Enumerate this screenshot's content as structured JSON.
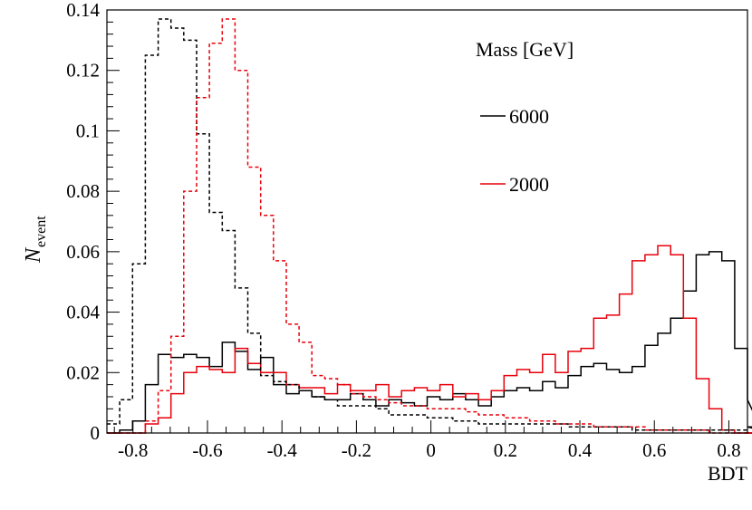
{
  "chart_data": {
    "type": "histogram",
    "xlabel": "BDT",
    "ylabel_main": "N",
    "ylabel_sub": "event",
    "xlim": [
      -0.87,
      0.85
    ],
    "ylim": [
      0,
      0.14
    ],
    "x_ticks": [
      -0.8,
      -0.6,
      -0.4,
      -0.2,
      0,
      0.2,
      0.4,
      0.6,
      0.8
    ],
    "x_tick_labels": [
      "-0.8",
      "-0.6",
      "-0.4",
      "-0.2",
      "0",
      "0.2",
      "0.4",
      "0.6",
      "0.8"
    ],
    "y_ticks": [
      0,
      0.02,
      0.04,
      0.06,
      0.08,
      0.1,
      0.12,
      0.14
    ],
    "y_tick_labels": [
      "0",
      "0.02",
      "0.04",
      "0.06",
      "0.08",
      "0.1",
      "0.12",
      "0.14"
    ],
    "legend": {
      "title": "Mass [GeV]",
      "entries": [
        {
          "label": "6000",
          "color": "#000000"
        },
        {
          "label": "2000",
          "color": "#e8000b"
        }
      ]
    },
    "binning": {
      "start": -0.87,
      "width": 0.0344
    },
    "series": [
      {
        "name": "6000 signal",
        "color": "#000000",
        "dashed": false,
        "values": [
          0.0,
          0.001,
          0.004,
          0.016,
          0.026,
          0.025,
          0.026,
          0.025,
          0.022,
          0.03,
          0.027,
          0.021,
          0.025,
          0.016,
          0.013,
          0.014,
          0.012,
          0.011,
          0.011,
          0.013,
          0.011,
          0.009,
          0.011,
          0.01,
          0.009,
          0.012,
          0.011,
          0.013,
          0.011,
          0.009,
          0.012,
          0.014,
          0.015,
          0.014,
          0.017,
          0.015,
          0.019,
          0.022,
          0.023,
          0.021,
          0.02,
          0.022,
          0.029,
          0.033,
          0.038,
          0.047,
          0.059,
          0.06,
          0.057,
          0.028,
          0.011,
          0.002,
          0.0
        ]
      },
      {
        "name": "2000 signal",
        "color": "#e8000b",
        "dashed": false,
        "values": [
          0.0,
          0.0,
          0.0,
          0.003,
          0.005,
          0.013,
          0.02,
          0.022,
          0.021,
          0.02,
          0.028,
          0.023,
          0.02,
          0.02,
          0.016,
          0.015,
          0.015,
          0.013,
          0.016,
          0.014,
          0.014,
          0.016,
          0.012,
          0.014,
          0.015,
          0.014,
          0.016,
          0.012,
          0.013,
          0.011,
          0.014,
          0.019,
          0.021,
          0.02,
          0.026,
          0.02,
          0.027,
          0.028,
          0.038,
          0.039,
          0.046,
          0.057,
          0.059,
          0.062,
          0.059,
          0.038,
          0.018,
          0.008,
          0.001,
          0.0,
          0.0,
          0.0,
          0.0
        ]
      },
      {
        "name": "6000 background",
        "color": "#000000",
        "dashed": true,
        "values": [
          0.003,
          0.011,
          0.056,
          0.125,
          0.137,
          0.134,
          0.13,
          0.099,
          0.073,
          0.067,
          0.048,
          0.033,
          0.019,
          0.017,
          0.016,
          0.014,
          0.012,
          0.011,
          0.009,
          0.009,
          0.009,
          0.008,
          0.006,
          0.006,
          0.006,
          0.005,
          0.005,
          0.004,
          0.004,
          0.003,
          0.003,
          0.003,
          0.003,
          0.003,
          0.003,
          0.003,
          0.002,
          0.002,
          0.002,
          0.002,
          0.002,
          0.001,
          0.001,
          0.001,
          0.001,
          0.001,
          0.001,
          0.001,
          0.001,
          0.001,
          0.0,
          0.0,
          0.0
        ]
      },
      {
        "name": "2000 background",
        "color": "#e8000b",
        "dashed": true,
        "values": [
          0.0,
          0.0,
          0.0,
          0.004,
          0.014,
          0.032,
          0.08,
          0.111,
          0.129,
          0.137,
          0.12,
          0.088,
          0.072,
          0.057,
          0.036,
          0.03,
          0.019,
          0.018,
          0.016,
          0.013,
          0.012,
          0.011,
          0.01,
          0.009,
          0.009,
          0.008,
          0.008,
          0.008,
          0.007,
          0.006,
          0.006,
          0.005,
          0.005,
          0.004,
          0.004,
          0.003,
          0.003,
          0.003,
          0.002,
          0.002,
          0.002,
          0.002,
          0.001,
          0.001,
          0.001,
          0.001,
          0.001,
          0.0,
          0.0,
          0.0,
          0.0,
          0.0,
          0.0
        ]
      }
    ]
  }
}
